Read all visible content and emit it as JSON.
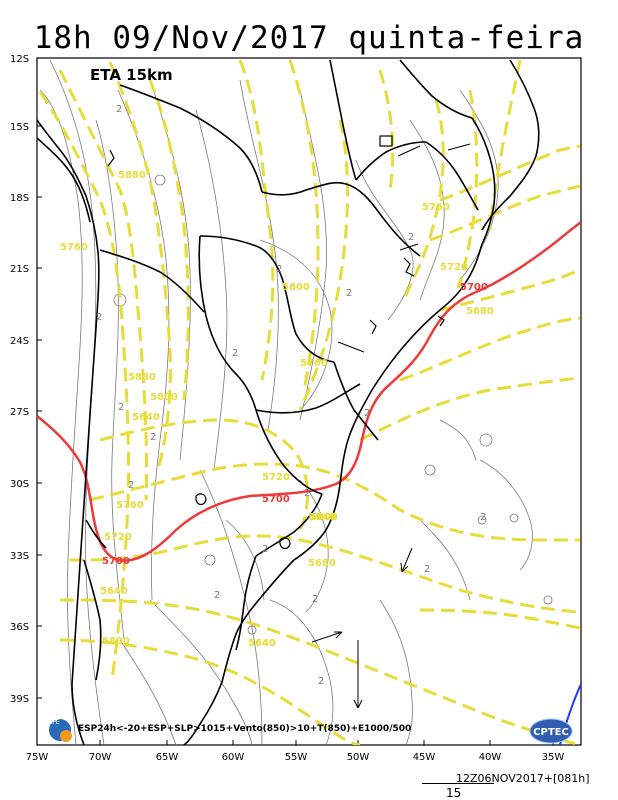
{
  "header": {
    "title": "18h 09/Nov/2017 quinta-feira"
  },
  "map": {
    "model_label": "ETA 15km",
    "legend_text": "ESP24h<-20+ESP+SLP>1015+Vento(850)>10+T(850)+E1000/500",
    "lat_ticks": [
      "12S",
      "15S",
      "18S",
      "21S",
      "24S",
      "27S",
      "30S",
      "33S",
      "36S",
      "39S"
    ],
    "lon_ticks": [
      "75W",
      "70W",
      "65W",
      "60W",
      "55W",
      "50W",
      "45W",
      "40W",
      "35W"
    ],
    "yellow_labels": [
      "5880",
      "5760",
      "5760",
      "5800",
      "5720",
      "5680",
      "5760",
      "5880",
      "5640",
      "5800",
      "5840",
      "5720",
      "5760",
      "5720",
      "5680",
      "5640",
      "5800",
      "5640",
      "5800",
      "5640"
    ],
    "red_labels": [
      "5700",
      "5700",
      "5700"
    ],
    "thin_labels": [
      "2",
      "2",
      "2",
      "2",
      "2",
      "2",
      "2",
      "2",
      "2",
      "2",
      "2",
      "2",
      "2",
      "2",
      "2",
      "2",
      "2"
    ],
    "logos": {
      "left": "INPE",
      "right": "CPTEC"
    },
    "colors": {
      "yellow_contour": "#e8dc3a",
      "red_contour": "#ee3a3a",
      "thin_contour": "#7a7a7a",
      "border": "#000000",
      "blue_contour": "#1a3cff"
    }
  },
  "footer": {
    "run_info": "12Z06NOV2017+[081h]",
    "scale_value": "15"
  }
}
